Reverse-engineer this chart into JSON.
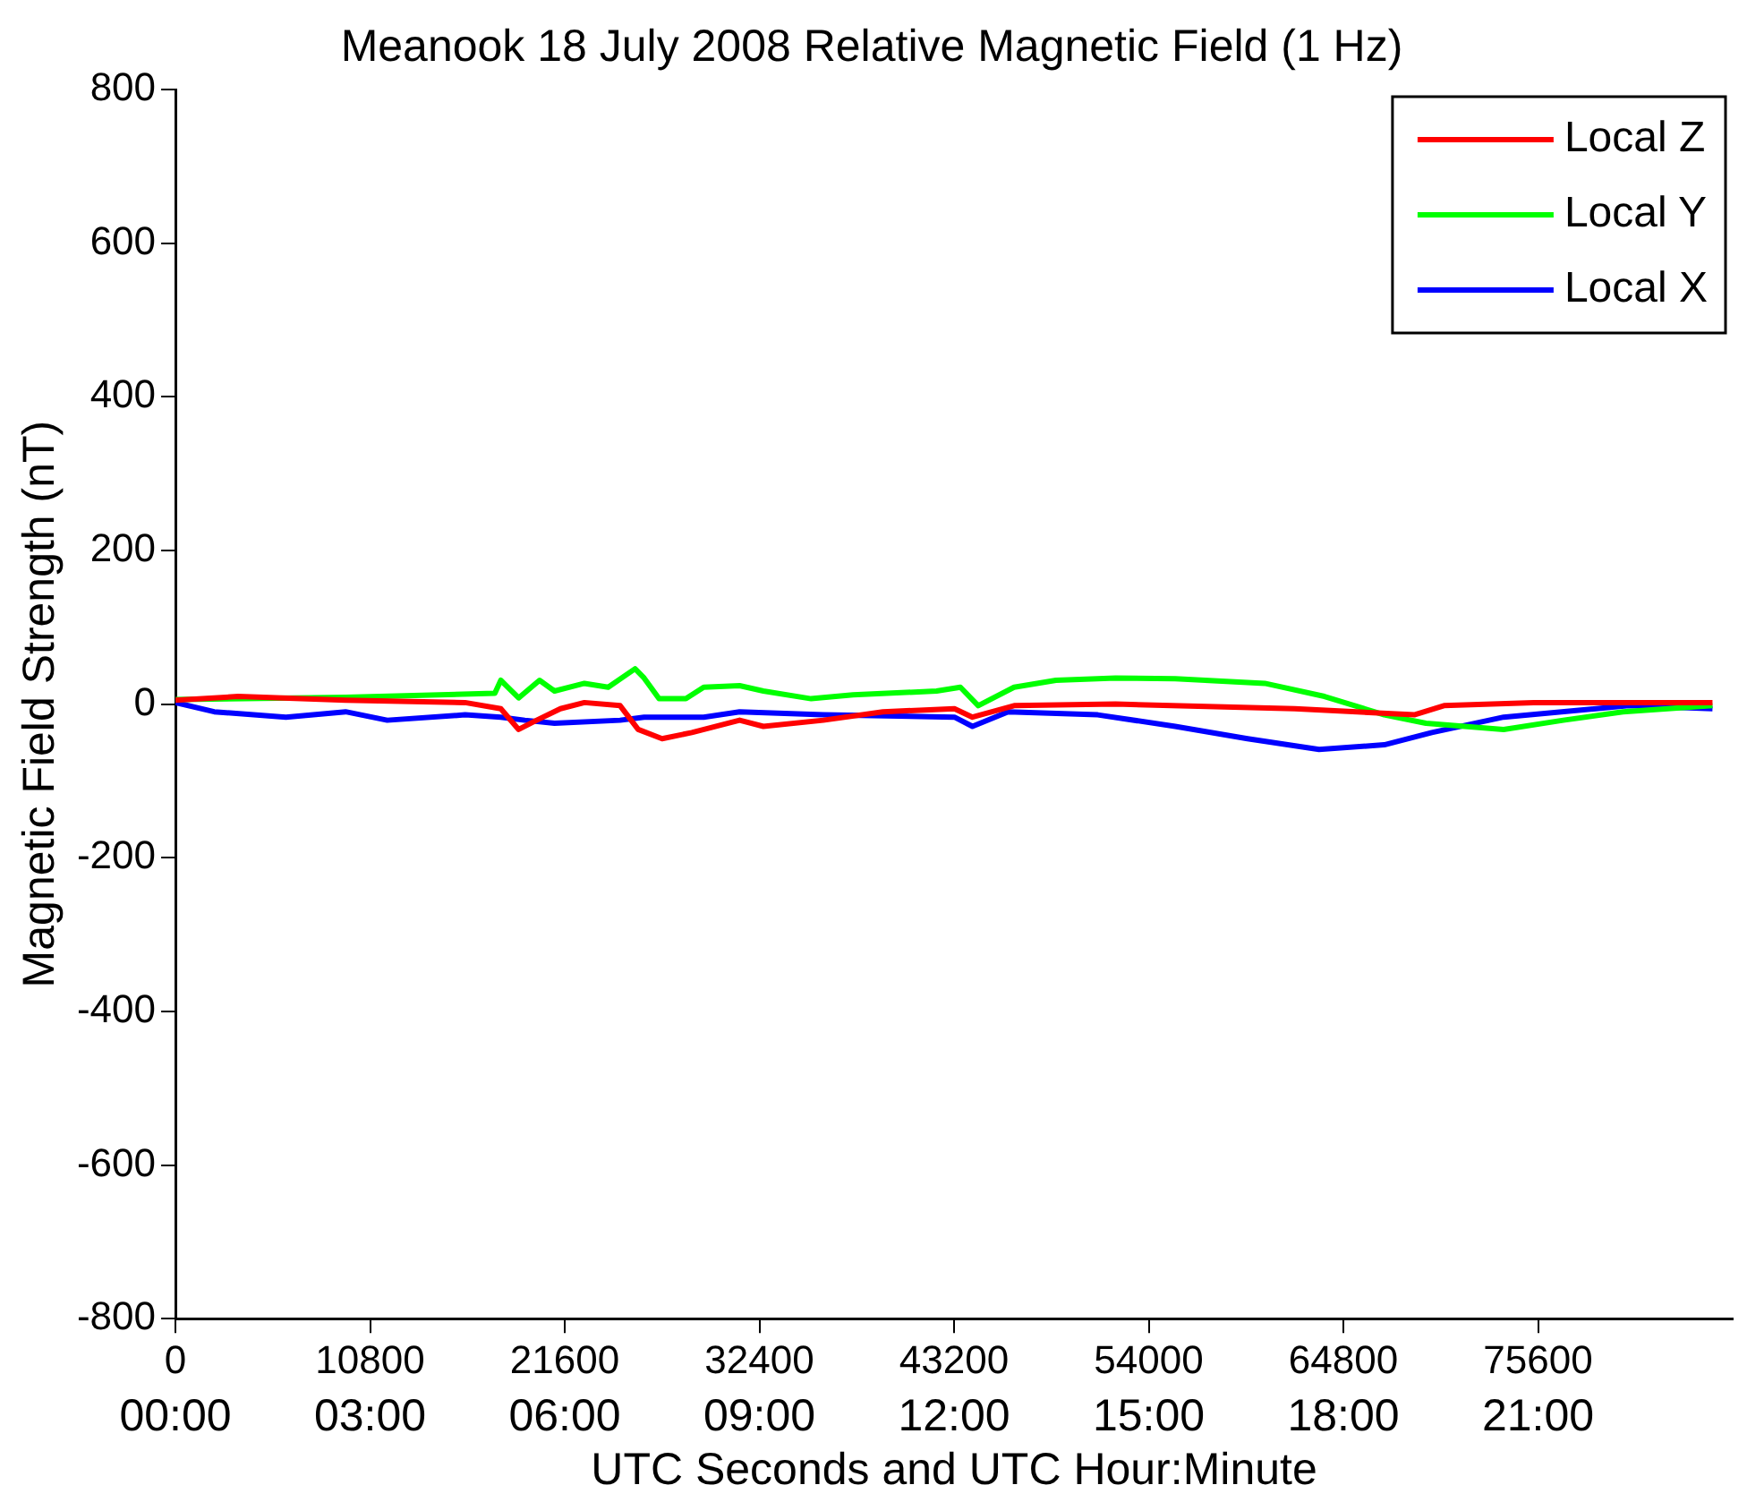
{
  "chart_data": {
    "type": "line",
    "title": "Meanook 18 July 2008 Relative Magnetic Field (1 Hz)",
    "xlabel": "UTC Seconds and UTC Hour:Minute",
    "ylabel": "Magnetic Field Strength (nT)",
    "xlim": [
      0,
      86400
    ],
    "xticks": [
      0,
      10800,
      21600,
      32400,
      43200,
      54000,
      64800,
      75600
    ],
    "x2lim": [
      0,
      24
    ],
    "x2ticks": [
      {
        "value": 0,
        "label": "00:00"
      },
      {
        "value": 3,
        "label": "03:00"
      },
      {
        "value": 6,
        "label": "06:00"
      },
      {
        "value": 9,
        "label": "09:00"
      },
      {
        "value": 12,
        "label": "12:00"
      },
      {
        "value": 15,
        "label": "15:00"
      },
      {
        "value": 18,
        "label": "18:00"
      },
      {
        "value": 21,
        "label": "21:00"
      }
    ],
    "ylim": [
      -800,
      800
    ],
    "yticks": [
      -800,
      -600,
      -400,
      -200,
      0,
      200,
      400,
      600,
      800
    ],
    "grid": false,
    "legend": "top right",
    "marker": "none",
    "line_style": "solid",
    "series": [
      {
        "name": "Local Z",
        "color": "#ff0000",
        "x": [
          0,
          3480,
          9440,
          16070,
          18050,
          19040,
          20040,
          21360,
          22690,
          24670,
          25670,
          27000,
          28650,
          31300,
          32620,
          35940,
          39250,
          43220,
          44220,
          46530,
          52160,
          62100,
          68730,
          70380,
          75350,
          85280
        ],
        "values": [
          5,
          10,
          5,
          2,
          -6,
          -33,
          -21,
          -6,
          2,
          -2,
          -33,
          -45,
          -37,
          -21,
          -29,
          -21,
          -10,
          -6,
          -17,
          -2,
          0,
          -6,
          -14,
          -2,
          2,
          2
        ]
      },
      {
        "name": "Local Y",
        "color": "#00ff00",
        "x": [
          0,
          9440,
          17720,
          18050,
          19040,
          20200,
          21030,
          22690,
          24010,
          25500,
          26000,
          26830,
          28320,
          29310,
          31300,
          32620,
          35270,
          37590,
          42230,
          43550,
          44540,
          46530,
          48850,
          52160,
          55470,
          60440,
          63750,
          67070,
          69380,
          73690,
          77000,
          80310,
          85280
        ],
        "values": [
          6,
          9,
          14,
          31,
          8,
          31,
          17,
          27,
          22,
          46,
          34,
          7,
          7,
          22,
          24,
          17,
          7,
          12,
          17,
          22,
          -2,
          22,
          31,
          34,
          33,
          27,
          10,
          -14,
          -25,
          -33,
          -21,
          -10,
          -2
        ]
      },
      {
        "name": "Local X",
        "color": "#0000ff",
        "x": [
          0,
          2150,
          6130,
          9440,
          11750,
          16070,
          18050,
          19380,
          21030,
          24670,
          26000,
          29310,
          31300,
          35940,
          43220,
          44220,
          46200,
          51170,
          55470,
          59480,
          63450,
          67070,
          69710,
          73690,
          80640,
          85280
        ],
        "values": [
          2,
          -10,
          -17,
          -10,
          -21,
          -14,
          -17,
          -21,
          -25,
          -21,
          -17,
          -17,
          -10,
          -14,
          -17,
          -29,
          -10,
          -14,
          -29,
          -45,
          -59,
          -53,
          -37,
          -17,
          -2,
          -6
        ]
      }
    ]
  }
}
